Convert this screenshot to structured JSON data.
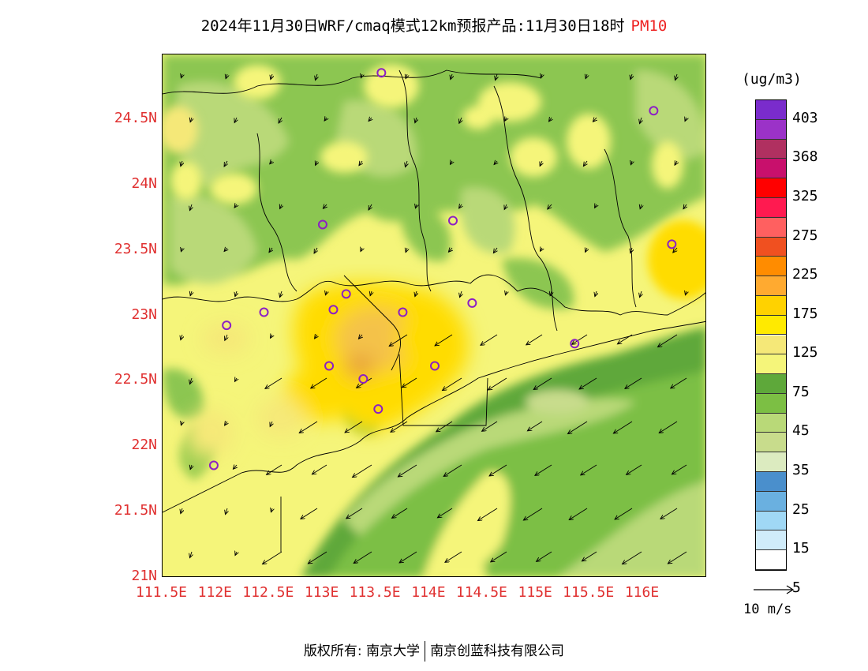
{
  "title": {
    "text": "2024年11月30日WRF/cmaq模式12km预报产品:11月30日18时",
    "pollutant": "PM10"
  },
  "colorbar": {
    "unit": "(ug/m3)",
    "labels": [
      "403",
      "368",
      "325",
      "275",
      "225",
      "175",
      "125",
      "75",
      "45",
      "35",
      "25",
      "15",
      "5"
    ],
    "colors": [
      "#7a2ccc",
      "#9b32c8",
      "#b03060",
      "#c8106c",
      "#ff0000",
      "#ff1a50",
      "#ff6060",
      "#f05020",
      "#ff8c00",
      "#ffaa30",
      "#ffd200",
      "#ffea00",
      "#f5e878",
      "#f5f57a",
      "#5ea83a",
      "#7cbf44",
      "#b9d978",
      "#c8dc8c",
      "#dcebc0",
      "#4a8fcc",
      "#6ab0e0",
      "#a0d8f5",
      "#d0ecfa",
      "#ffffff"
    ]
  },
  "axes": {
    "lat_labels": [
      "24.5N",
      "24N",
      "23.5N",
      "23N",
      "22.5N",
      "22N",
      "21.5N",
      "21N"
    ],
    "lon_labels": [
      "111.5E",
      "112E",
      "112.5E",
      "113E",
      "113.5E",
      "114E",
      "114.5E",
      "115E",
      "115.5E",
      "116E"
    ]
  },
  "ref_vector": {
    "label": "10 m/s"
  },
  "footer": {
    "left": "版权所有: 南京大学",
    "right": "南京创蓝科技有限公司"
  },
  "palette": {
    "sea_dark": "#5ea83a",
    "sea_mid": "#8cc651",
    "sea_light": "#b9d978",
    "land_yellow": "#f5f57a",
    "land_orange": "#ffdc00",
    "hot": "#f4c24a",
    "station": "#8c1fc4"
  },
  "stations": [
    {
      "lon": 113.55,
      "lat": 24.86
    },
    {
      "lon": 116.1,
      "lat": 24.57
    },
    {
      "lon": 113.0,
      "lat": 23.7
    },
    {
      "lon": 114.22,
      "lat": 23.73
    },
    {
      "lon": 116.27,
      "lat": 23.55
    },
    {
      "lon": 112.45,
      "lat": 23.03
    },
    {
      "lon": 113.1,
      "lat": 23.05
    },
    {
      "lon": 113.22,
      "lat": 23.17
    },
    {
      "lon": 113.75,
      "lat": 23.03
    },
    {
      "lon": 114.4,
      "lat": 23.1
    },
    {
      "lon": 112.1,
      "lat": 22.93
    },
    {
      "lon": 115.36,
      "lat": 22.79
    },
    {
      "lon": 113.06,
      "lat": 22.62
    },
    {
      "lon": 114.05,
      "lat": 22.62
    },
    {
      "lon": 113.38,
      "lat": 22.52
    },
    {
      "lon": 113.52,
      "lat": 22.29
    },
    {
      "lon": 111.98,
      "lat": 21.86
    }
  ]
}
